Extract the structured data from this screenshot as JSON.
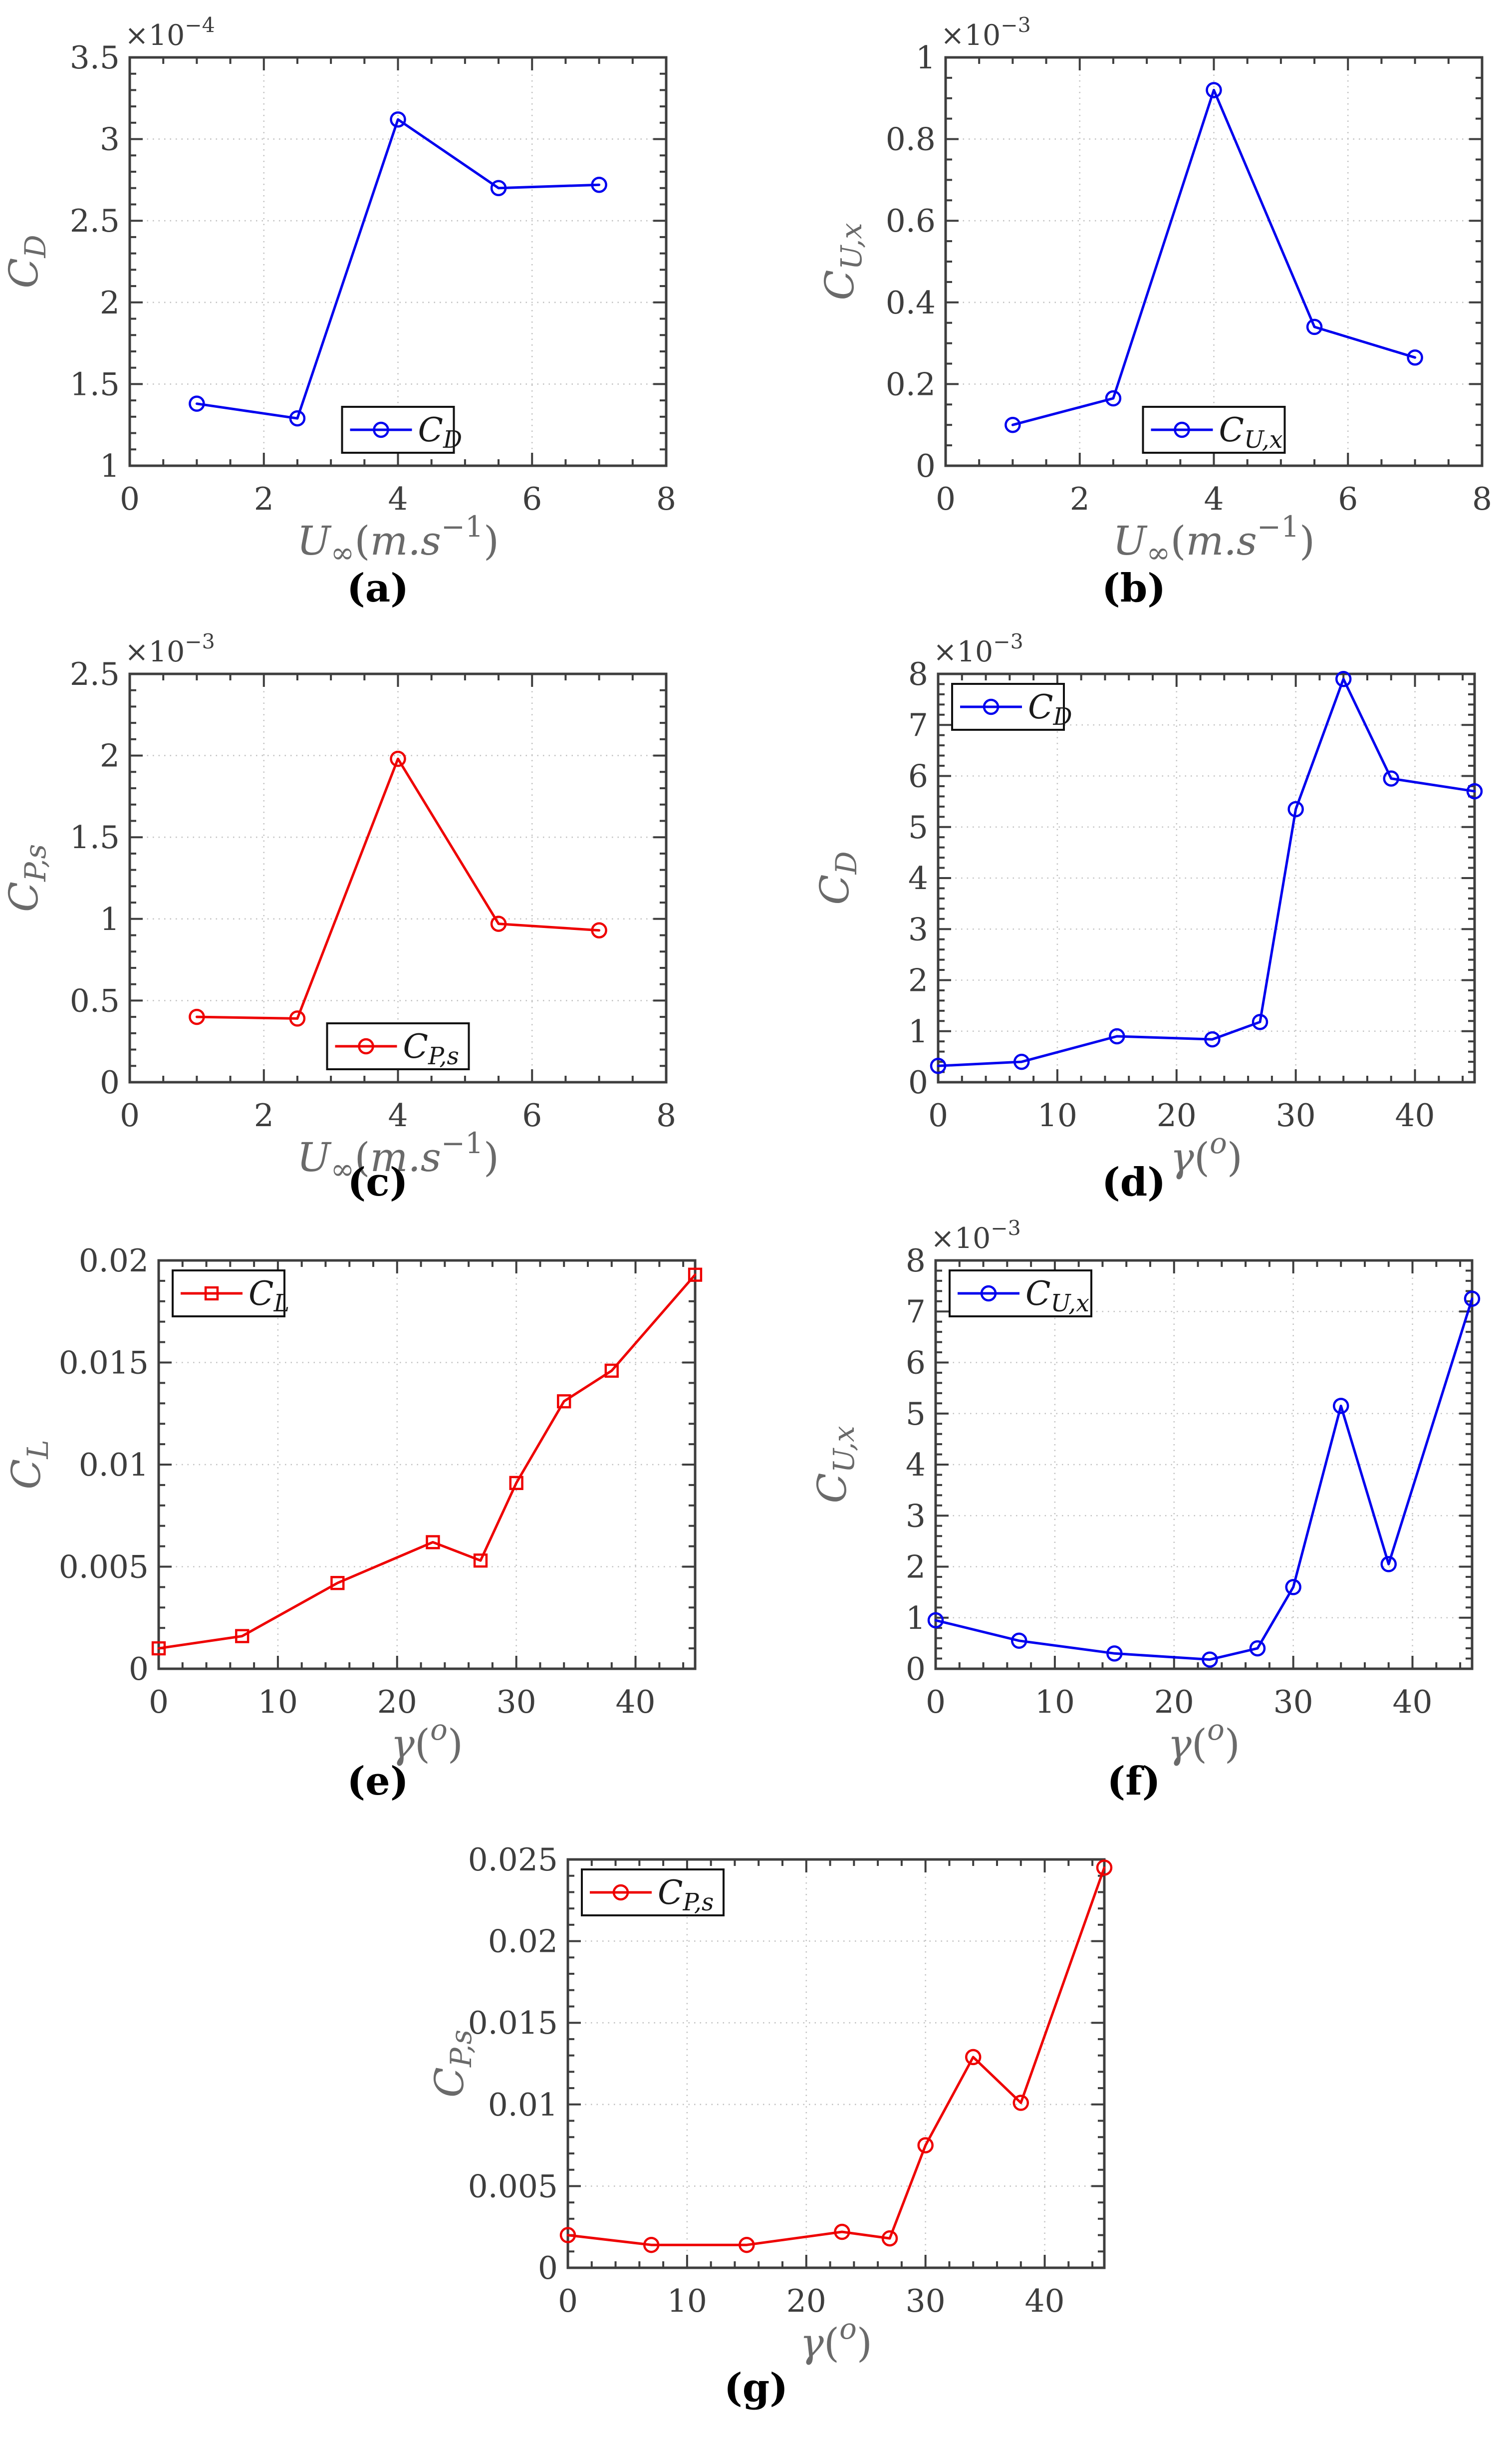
{
  "style": {
    "background": "#FFFFFF",
    "axis_color": "#3E3E3E",
    "tick_label_color": "#3E3E3E",
    "axis_label_color": "#6A6A6A",
    "grid_color": "#C2C2C2",
    "caption_color": "#000000",
    "legend_border_color": "#111111",
    "legend_text_color": "#1A1A1A",
    "series_blue": "#0000EE",
    "series_red": "#EE0000"
  },
  "chart_data": [
    {
      "id": "a",
      "type": "line",
      "panel_label": "(a)",
      "xlabel_tokens": [
        [
          "U",
          "i"
        ],
        [
          "∞",
          "sub"
        ],
        [
          "(",
          "n"
        ],
        [
          "m.s",
          "i"
        ],
        [
          "−1",
          "sup"
        ],
        [
          ")",
          "n"
        ]
      ],
      "ylabel_tokens": [
        [
          "C",
          "i"
        ],
        [
          "D",
          "isub"
        ]
      ],
      "y_exponent_tokens": [
        [
          "×10",
          "n"
        ],
        [
          "−4",
          "sup"
        ]
      ],
      "y_multiplier": 0.0001,
      "xlim": [
        0,
        8
      ],
      "ylim": [
        1,
        3.5
      ],
      "xticks": [
        0,
        2,
        4,
        6,
        8
      ],
      "xtick_labels": [
        "0",
        "2",
        "4",
        "6",
        "8"
      ],
      "yticks": [
        1,
        1.5,
        2,
        2.5,
        3,
        3.5
      ],
      "ytick_labels": [
        "1",
        "1.5",
        "2",
        "2.5",
        "3",
        "3.5"
      ],
      "x_minor_step": 0.5,
      "y_minor_step": 0.1,
      "grid": true,
      "legend": {
        "position": "bottom-center",
        "label_tokens": [
          [
            "C",
            "i"
          ],
          [
            "D",
            "isub"
          ]
        ]
      },
      "series": [
        {
          "name": "C_D",
          "color": "#0000EE",
          "marker": "circle",
          "x": [
            1,
            2.5,
            4,
            5.5,
            7
          ],
          "y": [
            1.38,
            1.29,
            3.12,
            2.7,
            2.72
          ]
        }
      ]
    },
    {
      "id": "b",
      "type": "line",
      "panel_label": "(b)",
      "xlabel_tokens": [
        [
          "U",
          "i"
        ],
        [
          "∞",
          "sub"
        ],
        [
          "(",
          "n"
        ],
        [
          "m.s",
          "i"
        ],
        [
          "−1",
          "sup"
        ],
        [
          ")",
          "n"
        ]
      ],
      "ylabel_tokens": [
        [
          "C",
          "i"
        ],
        [
          "U,x",
          "isub"
        ]
      ],
      "y_exponent_tokens": [
        [
          "×10",
          "n"
        ],
        [
          "−3",
          "sup"
        ]
      ],
      "y_multiplier": 0.001,
      "xlim": [
        0,
        8
      ],
      "ylim": [
        0,
        1
      ],
      "xticks": [
        0,
        2,
        4,
        6,
        8
      ],
      "xtick_labels": [
        "0",
        "2",
        "4",
        "6",
        "8"
      ],
      "yticks": [
        0,
        0.2,
        0.4,
        0.6,
        0.8,
        1
      ],
      "ytick_labels": [
        "0",
        "0.2",
        "0.4",
        "0.6",
        "0.8",
        "1"
      ],
      "x_minor_step": 0.5,
      "y_minor_step": 0.05,
      "grid": true,
      "legend": {
        "position": "bottom-center",
        "label_tokens": [
          [
            "C",
            "i"
          ],
          [
            "U,x",
            "isub"
          ]
        ]
      },
      "series": [
        {
          "name": "C_Ux",
          "color": "#0000EE",
          "marker": "circle",
          "x": [
            1,
            2.5,
            4,
            5.5,
            7
          ],
          "y": [
            0.1,
            0.165,
            0.92,
            0.34,
            0.265
          ]
        }
      ]
    },
    {
      "id": "c",
      "type": "line",
      "panel_label": "(c)",
      "xlabel_tokens": [
        [
          "U",
          "i"
        ],
        [
          "∞",
          "sub"
        ],
        [
          "(",
          "n"
        ],
        [
          "m.s",
          "i"
        ],
        [
          "−1",
          "sup"
        ],
        [
          ")",
          "n"
        ]
      ],
      "ylabel_tokens": [
        [
          "C",
          "i"
        ],
        [
          "P,s",
          "isub"
        ]
      ],
      "y_exponent_tokens": [
        [
          "×10",
          "n"
        ],
        [
          "−3",
          "sup"
        ]
      ],
      "y_multiplier": 0.001,
      "xlim": [
        0,
        8
      ],
      "ylim": [
        0,
        2.5
      ],
      "xticks": [
        0,
        2,
        4,
        6,
        8
      ],
      "xtick_labels": [
        "0",
        "2",
        "4",
        "6",
        "8"
      ],
      "yticks": [
        0,
        0.5,
        1,
        1.5,
        2,
        2.5
      ],
      "ytick_labels": [
        "0",
        "0.5",
        "1",
        "1.5",
        "2",
        "2.5"
      ],
      "x_minor_step": 0.5,
      "y_minor_step": 0.1,
      "grid": true,
      "legend": {
        "position": "bottom-center",
        "label_tokens": [
          [
            "C",
            "i"
          ],
          [
            "P,s",
            "isub"
          ]
        ]
      },
      "series": [
        {
          "name": "C_Ps",
          "color": "#EE0000",
          "marker": "circle",
          "x": [
            1,
            2.5,
            4,
            5.5,
            7
          ],
          "y": [
            0.4,
            0.39,
            1.98,
            0.97,
            0.93
          ]
        }
      ]
    },
    {
      "id": "d",
      "type": "line",
      "panel_label": "(d)",
      "xlabel_tokens": [
        [
          "γ",
          "i"
        ],
        [
          "(",
          "n"
        ],
        [
          "o",
          "isup"
        ],
        [
          ")",
          "n"
        ]
      ],
      "ylabel_tokens": [
        [
          "C",
          "i"
        ],
        [
          "D",
          "isub"
        ]
      ],
      "y_exponent_tokens": [
        [
          "×10",
          "n"
        ],
        [
          "−3",
          "sup"
        ]
      ],
      "y_multiplier": 0.001,
      "xlim": [
        0,
        45
      ],
      "ylim": [
        0,
        8
      ],
      "xticks": [
        0,
        10,
        20,
        30,
        40
      ],
      "xtick_labels": [
        "0",
        "10",
        "20",
        "30",
        "40"
      ],
      "yticks": [
        0,
        1,
        2,
        3,
        4,
        5,
        6,
        7,
        8
      ],
      "ytick_labels": [
        "0",
        "1",
        "2",
        "3",
        "4",
        "5",
        "6",
        "7",
        "8"
      ],
      "x_minor_step": 2,
      "y_minor_step": 0.2,
      "grid": true,
      "legend": {
        "position": "top-left",
        "label_tokens": [
          [
            "C",
            "i"
          ],
          [
            "D",
            "isub"
          ]
        ]
      },
      "series": [
        {
          "name": "C_D",
          "color": "#0000EE",
          "marker": "circle",
          "x": [
            0,
            7,
            15,
            23,
            27,
            30,
            34,
            38,
            45
          ],
          "y": [
            0.32,
            0.4,
            0.9,
            0.84,
            1.18,
            5.35,
            7.9,
            5.95,
            5.7
          ]
        }
      ]
    },
    {
      "id": "e",
      "type": "line",
      "panel_label": "(e)",
      "xlabel_tokens": [
        [
          "γ",
          "i"
        ],
        [
          "(",
          "n"
        ],
        [
          "o",
          "isup"
        ],
        [
          ")",
          "n"
        ]
      ],
      "ylabel_tokens": [
        [
          "C",
          "i"
        ],
        [
          "L",
          "isub"
        ]
      ],
      "y_exponent_tokens": null,
      "y_multiplier": 1,
      "xlim": [
        0,
        45
      ],
      "ylim": [
        0,
        0.02
      ],
      "xticks": [
        0,
        10,
        20,
        30,
        40
      ],
      "xtick_labels": [
        "0",
        "10",
        "20",
        "30",
        "40"
      ],
      "yticks": [
        0,
        0.005,
        0.01,
        0.015,
        0.02
      ],
      "ytick_labels": [
        "0",
        "0.005",
        "0.01",
        "0.015",
        "0.02"
      ],
      "x_minor_step": 2,
      "y_minor_step": 0.001,
      "grid": true,
      "legend": {
        "position": "top-left",
        "label_tokens": [
          [
            "C",
            "i"
          ],
          [
            "L",
            "isub"
          ]
        ]
      },
      "series": [
        {
          "name": "C_L",
          "color": "#EE0000",
          "marker": "square",
          "x": [
            0,
            7,
            15,
            23,
            27,
            30,
            34,
            38,
            45
          ],
          "y": [
            0.001,
            0.0016,
            0.0042,
            0.0062,
            0.0053,
            0.0091,
            0.0131,
            0.0146,
            0.0193
          ]
        }
      ]
    },
    {
      "id": "f",
      "type": "line",
      "panel_label": "(f)",
      "xlabel_tokens": [
        [
          "γ",
          "i"
        ],
        [
          "(",
          "n"
        ],
        [
          "o",
          "isup"
        ],
        [
          ")",
          "n"
        ]
      ],
      "ylabel_tokens": [
        [
          "C",
          "i"
        ],
        [
          "U,x",
          "isub"
        ]
      ],
      "y_exponent_tokens": [
        [
          "×10",
          "n"
        ],
        [
          "−3",
          "sup"
        ]
      ],
      "y_multiplier": 0.001,
      "xlim": [
        0,
        45
      ],
      "ylim": [
        0,
        8
      ],
      "xticks": [
        0,
        10,
        20,
        30,
        40
      ],
      "xtick_labels": [
        "0",
        "10",
        "20",
        "30",
        "40"
      ],
      "yticks": [
        0,
        1,
        2,
        3,
        4,
        5,
        6,
        7,
        8
      ],
      "ytick_labels": [
        "0",
        "1",
        "2",
        "3",
        "4",
        "5",
        "6",
        "7",
        "8"
      ],
      "x_minor_step": 2,
      "y_minor_step": 0.2,
      "grid": true,
      "legend": {
        "position": "top-left",
        "label_tokens": [
          [
            "C",
            "i"
          ],
          [
            "U,x",
            "isub"
          ]
        ]
      },
      "series": [
        {
          "name": "C_Ux",
          "color": "#0000EE",
          "marker": "circle",
          "x": [
            0,
            7,
            15,
            23,
            27,
            30,
            34,
            38,
            45
          ],
          "y": [
            0.95,
            0.55,
            0.3,
            0.18,
            0.4,
            1.6,
            5.15,
            2.05,
            7.25
          ]
        }
      ]
    },
    {
      "id": "g",
      "type": "line",
      "panel_label": "(g)",
      "xlabel_tokens": [
        [
          "γ",
          "i"
        ],
        [
          "(",
          "n"
        ],
        [
          "o",
          "isup"
        ],
        [
          ")",
          "n"
        ]
      ],
      "ylabel_tokens": [
        [
          "C",
          "i"
        ],
        [
          "P,s",
          "isub"
        ]
      ],
      "y_exponent_tokens": null,
      "y_multiplier": 1,
      "xlim": [
        0,
        45
      ],
      "ylim": [
        0,
        0.025
      ],
      "xticks": [
        0,
        10,
        20,
        30,
        40
      ],
      "xtick_labels": [
        "0",
        "10",
        "20",
        "30",
        "40"
      ],
      "yticks": [
        0,
        0.005,
        0.01,
        0.015,
        0.02,
        0.025
      ],
      "ytick_labels": [
        "0",
        "0.005",
        "0.01",
        "0.015",
        "0.02",
        "0.025"
      ],
      "x_minor_step": 2,
      "y_minor_step": 0.001,
      "grid": true,
      "legend": {
        "position": "top-left",
        "label_tokens": [
          [
            "C",
            "i"
          ],
          [
            "P,s",
            "isub"
          ]
        ]
      },
      "series": [
        {
          "name": "C_Ps",
          "color": "#EE0000",
          "marker": "circle",
          "x": [
            0,
            7,
            15,
            23,
            27,
            30,
            34,
            38,
            45
          ],
          "y": [
            0.002,
            0.0014,
            0.0014,
            0.0022,
            0.0018,
            0.0075,
            0.0129,
            0.0101,
            0.0245
          ]
        }
      ]
    }
  ]
}
